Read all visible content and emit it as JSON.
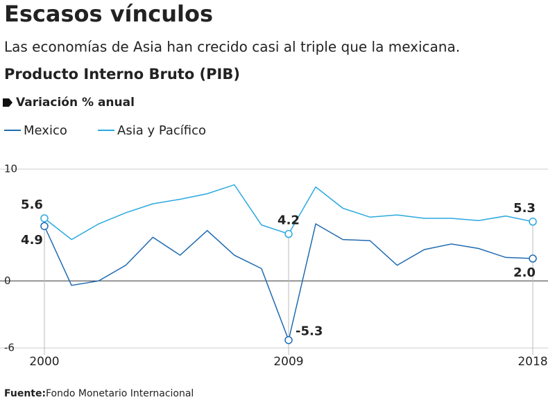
{
  "chart_data": {
    "type": "line",
    "title": "Escasos vínculos",
    "subtitle": "Las economías de Asia han crecido casi al triple que la mexicana.",
    "heading": "Producto Interno Bruto (PIB)",
    "unit_label": "Variación % anual",
    "x": [
      2000,
      2001,
      2002,
      2003,
      2004,
      2005,
      2006,
      2007,
      2008,
      2009,
      2010,
      2011,
      2012,
      2013,
      2014,
      2015,
      2016,
      2017,
      2018
    ],
    "xlim": [
      2000,
      2018
    ],
    "xticks": [
      2000,
      2009,
      2018
    ],
    "ylim": [
      -6,
      10
    ],
    "yticks": [
      10,
      0,
      -6
    ],
    "series": [
      {
        "name": "Mexico",
        "color": "#1f6bb0",
        "values": [
          4.9,
          -0.4,
          0.0,
          1.4,
          3.9,
          2.3,
          4.5,
          2.3,
          1.1,
          -5.3,
          5.1,
          3.7,
          3.6,
          1.4,
          2.8,
          3.3,
          2.9,
          2.1,
          2.0
        ],
        "value_labels": [
          "4.9",
          null,
          null,
          null,
          null,
          null,
          null,
          null,
          null,
          "-5.3",
          null,
          null,
          null,
          null,
          null,
          null,
          null,
          null,
          "2.0"
        ]
      },
      {
        "name": "Asia y Pacífico",
        "color": "#29a8e0",
        "values": [
          5.6,
          3.7,
          5.1,
          6.1,
          6.9,
          7.3,
          7.8,
          8.6,
          5.0,
          4.2,
          8.4,
          6.5,
          5.7,
          5.9,
          5.6,
          5.6,
          5.4,
          5.8,
          5.3
        ],
        "value_labels": [
          "5.6",
          null,
          null,
          null,
          null,
          null,
          null,
          null,
          null,
          "4.2",
          null,
          null,
          null,
          null,
          null,
          null,
          null,
          null,
          "5.3"
        ]
      }
    ],
    "source": {
      "label": "Fuente:",
      "text": "Fondo Monetario Internacional"
    }
  }
}
